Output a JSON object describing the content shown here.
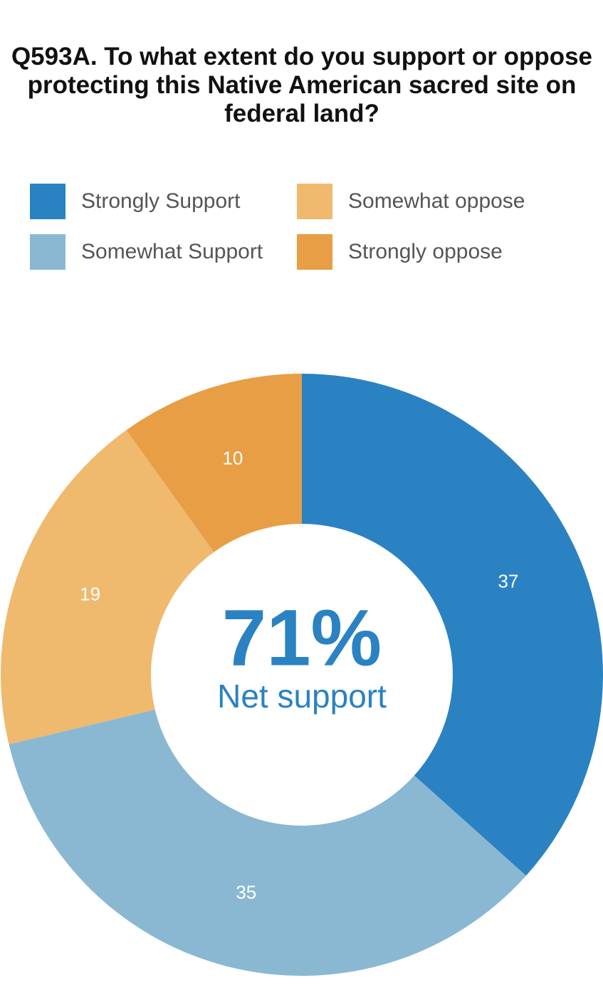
{
  "chart_data": {
    "type": "donut",
    "title": "Q593A. To what extent do you support or oppose protecting this Native American sacred site on federal land?",
    "categories": [
      "Strongly Support",
      "Somewhat Support",
      "Somewhat oppose",
      "Strongly oppose"
    ],
    "values": [
      37,
      35,
      19,
      10
    ],
    "colors": [
      "#2a82c2",
      "#8ab8d3",
      "#efb96e",
      "#e89e45"
    ],
    "center_text": "71%",
    "center_subtext": "Net support"
  }
}
